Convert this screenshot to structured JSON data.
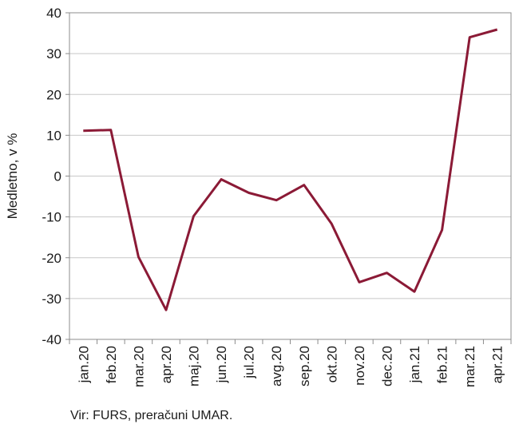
{
  "chart_data": {
    "type": "line",
    "title": "",
    "xlabel": "",
    "ylabel": "Medletno, v %",
    "ylim": [
      -40,
      40
    ],
    "yticks": [
      -40,
      -30,
      -20,
      -10,
      0,
      10,
      20,
      30,
      40
    ],
    "grid": true,
    "legend": "none",
    "categories": [
      "jan.20",
      "feb.20",
      "mar.20",
      "apr.20",
      "maj.20",
      "jun.20",
      "jul.20",
      "avg.20",
      "sep.20",
      "okt.20",
      "nov.20",
      "dec.20",
      "jan.21",
      "feb.21",
      "mar.21",
      "apr.21"
    ],
    "series": [
      {
        "color": "#8b1a36",
        "values": [
          11.1,
          11.3,
          -19.8,
          -32.8,
          -9.8,
          -0.8,
          -4.1,
          -5.9,
          -2.2,
          -11.7,
          -26.0,
          -23.7,
          -28.3,
          -13.2,
          34.0,
          35.9
        ]
      }
    ]
  },
  "source": "Vir: FURS, preračuni UMAR."
}
